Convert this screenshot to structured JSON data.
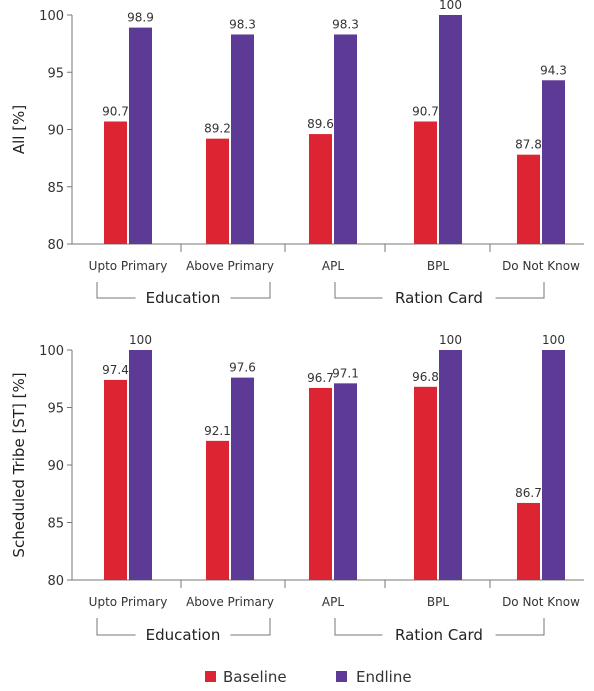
{
  "colors": {
    "baseline": "#dc2432",
    "endline": "#5d3a96"
  },
  "legend": {
    "baseline": "Baseline",
    "endline": "Endline"
  },
  "chart_data": [
    {
      "type": "bar",
      "ylabel": "All [%]",
      "ylim": [
        80,
        100
      ],
      "yticks": [
        80,
        85,
        90,
        95,
        100
      ],
      "categories": [
        "Upto Primary",
        "Above Primary",
        "APL",
        "BPL",
        "Do Not Know"
      ],
      "groups": [
        {
          "label": "Education",
          "categories": [
            "Upto Primary",
            "Above Primary"
          ]
        },
        {
          "label": "Ration Card",
          "categories": [
            "APL",
            "BPL",
            "Do Not Know"
          ]
        }
      ],
      "series": [
        {
          "name": "Baseline",
          "values": [
            90.7,
            89.2,
            89.6,
            90.7,
            87.8
          ]
        },
        {
          "name": "Endline",
          "values": [
            98.9,
            98.3,
            98.3,
            100,
            94.3
          ]
        }
      ]
    },
    {
      "type": "bar",
      "ylabel": "Scheduled Tribe [ST] [%]",
      "ylim": [
        80,
        100
      ],
      "yticks": [
        80,
        85,
        90,
        95,
        100
      ],
      "categories": [
        "Upto Primary",
        "Above Primary",
        "APL",
        "BPL",
        "Do Not Know"
      ],
      "groups": [
        {
          "label": "Education",
          "categories": [
            "Upto Primary",
            "Above Primary"
          ]
        },
        {
          "label": "Ration Card",
          "categories": [
            "APL",
            "BPL",
            "Do Not Know"
          ]
        }
      ],
      "series": [
        {
          "name": "Baseline",
          "values": [
            97.4,
            92.1,
            96.7,
            96.8,
            86.7
          ]
        },
        {
          "name": "Endline",
          "values": [
            100,
            97.6,
            97.1,
            100,
            100
          ]
        }
      ]
    }
  ]
}
